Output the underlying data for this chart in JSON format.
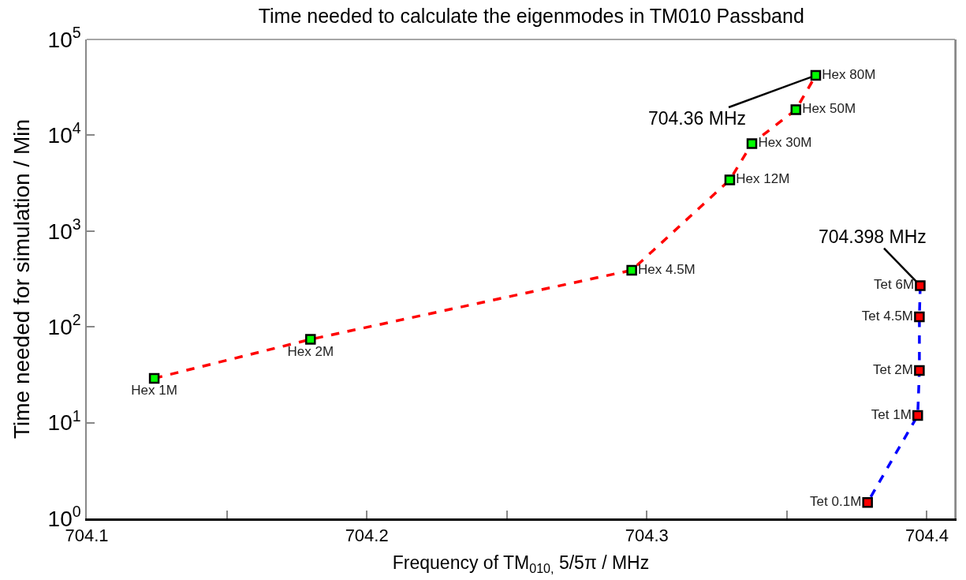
{
  "chart_data": {
    "type": "line",
    "title": "Time needed to calculate the eigenmodes in TM010 Passband",
    "xlabel": "Frequency of TM$_{010,}$ 5/5π / MHz",
    "ylabel": "Time needed for simulation / Min",
    "xlim": [
      704.1,
      704.41
    ],
    "xticks": [
      704.1,
      {
        "value": 704.15,
        "label": null
      },
      704.2,
      {
        "value": 704.25,
        "label": null
      },
      704.3,
      {
        "value": 704.35,
        "label": null
      },
      704.4
    ],
    "ylim": [
      1,
      100000
    ],
    "log": true,
    "yticks": [
      {
        "value": 1,
        "label": "10$^{0}$"
      },
      {
        "value": 10,
        "label": "10$^{1}$"
      },
      {
        "value": 100,
        "label": "10$^{2}$"
      },
      {
        "value": 1000,
        "label": "10$^{3}$"
      },
      {
        "value": 10000,
        "label": "10$^{4}$"
      },
      {
        "value": 100000,
        "label": "10$^{5}$"
      }
    ],
    "legend": false,
    "marker": "square",
    "line_style": "dashed",
    "series": [
      {
        "color": "#ff0000",
        "colors": [
          "#00ff00",
          "#00ff00",
          "#00ff00",
          "#00ff00",
          "#00ff00",
          "#00ff00",
          "#00ff00"
        ],
        "x": [
          704.1241,
          704.1799,
          704.2946,
          704.3296,
          704.3375,
          704.3532,
          704.3603
        ],
        "values": [
          29,
          74,
          390,
          3420,
          8180,
          18500,
          42200
        ],
        "value_labels": [
          "Hex 1M",
          "Hex 2M",
          "Hex 4.5M",
          "Hex 12M",
          "Hex 30M",
          "Hex 50M",
          "Hex 80M"
        ]
      },
      {
        "color": "#0000ff",
        "colors": [
          "#ff0000",
          "#ff0000",
          "#ff0000",
          "#ff0000",
          "#ff0000"
        ],
        "x": [
          704.3976,
          704.3973,
          704.3973,
          704.3967,
          704.3788
        ],
        "values": [
          269,
          127,
          35,
          11.9,
          1.47
        ],
        "value_labels": [
          "Tet 6M",
          "Tet 4.5M",
          "Tet 2M",
          "Tet 1M",
          "Tet 0.1M"
        ]
      }
    ],
    "annotations": [
      {
        "text": "704.36 MHz",
        "x": 704.3603,
        "y": 42200
      },
      {
        "text": "704.398 MHz",
        "x": 704.3976,
        "y": 269
      }
    ]
  }
}
